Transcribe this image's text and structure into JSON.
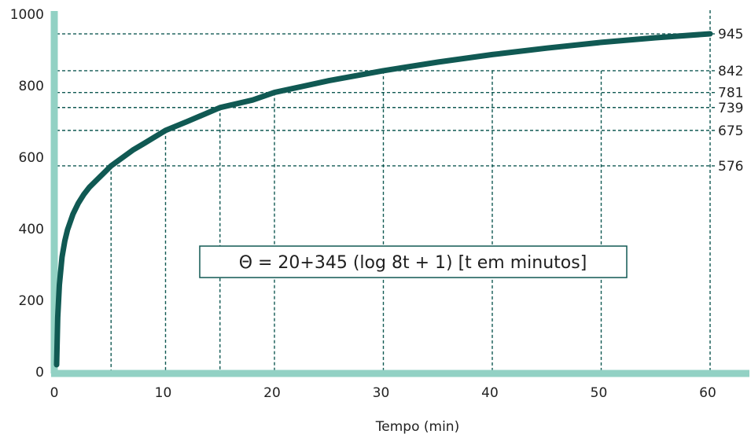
{
  "chart_data": {
    "type": "line",
    "title": "",
    "xlabel": "Tempo (min)",
    "ylabel": "",
    "xlim": [
      0,
      60
    ],
    "ylim": [
      0,
      1000
    ],
    "x_ticks": [
      0,
      10,
      20,
      30,
      40,
      50,
      60
    ],
    "y_ticks": [
      0,
      200,
      400,
      600,
      800,
      1000
    ],
    "grid": false,
    "legend": "none",
    "series": [
      {
        "x": [
          0,
          0.1,
          0.25,
          0.5,
          0.75,
          1,
          1.5,
          2,
          2.5,
          3,
          4,
          5,
          6,
          7,
          8,
          10,
          12,
          15,
          18,
          20,
          25,
          30,
          35,
          40,
          45,
          50,
          55,
          60
        ],
        "y": [
          20,
          152,
          243,
          321,
          366,
          397,
          441,
          472,
          496,
          516,
          546,
          576,
          598,
          620,
          638,
          675,
          700,
          739,
          760,
          781,
          814,
          842,
          866,
          887,
          905,
          921,
          934,
          945
        ]
      }
    ],
    "reference_points": [
      {
        "x": 5,
        "y": 576
      },
      {
        "x": 10,
        "y": 675
      },
      {
        "x": 15,
        "y": 739
      },
      {
        "x": 20,
        "y": 781
      },
      {
        "x": 30,
        "y": 842
      },
      {
        "x": 60,
        "y": 945
      }
    ],
    "right_labels": [
      "945",
      "842",
      "781",
      "739",
      "675",
      "576"
    ],
    "right_values": [
      945,
      842,
      781,
      739,
      675,
      576
    ],
    "extra_vlines": [
      40,
      50
    ],
    "annotation": "Θ = 20+345 (log 8t + 1) [t em minutos]"
  },
  "colors": {
    "axis": "#92d1c4",
    "curve": "#105953",
    "guides": "#105953",
    "box_border": "#105953"
  }
}
